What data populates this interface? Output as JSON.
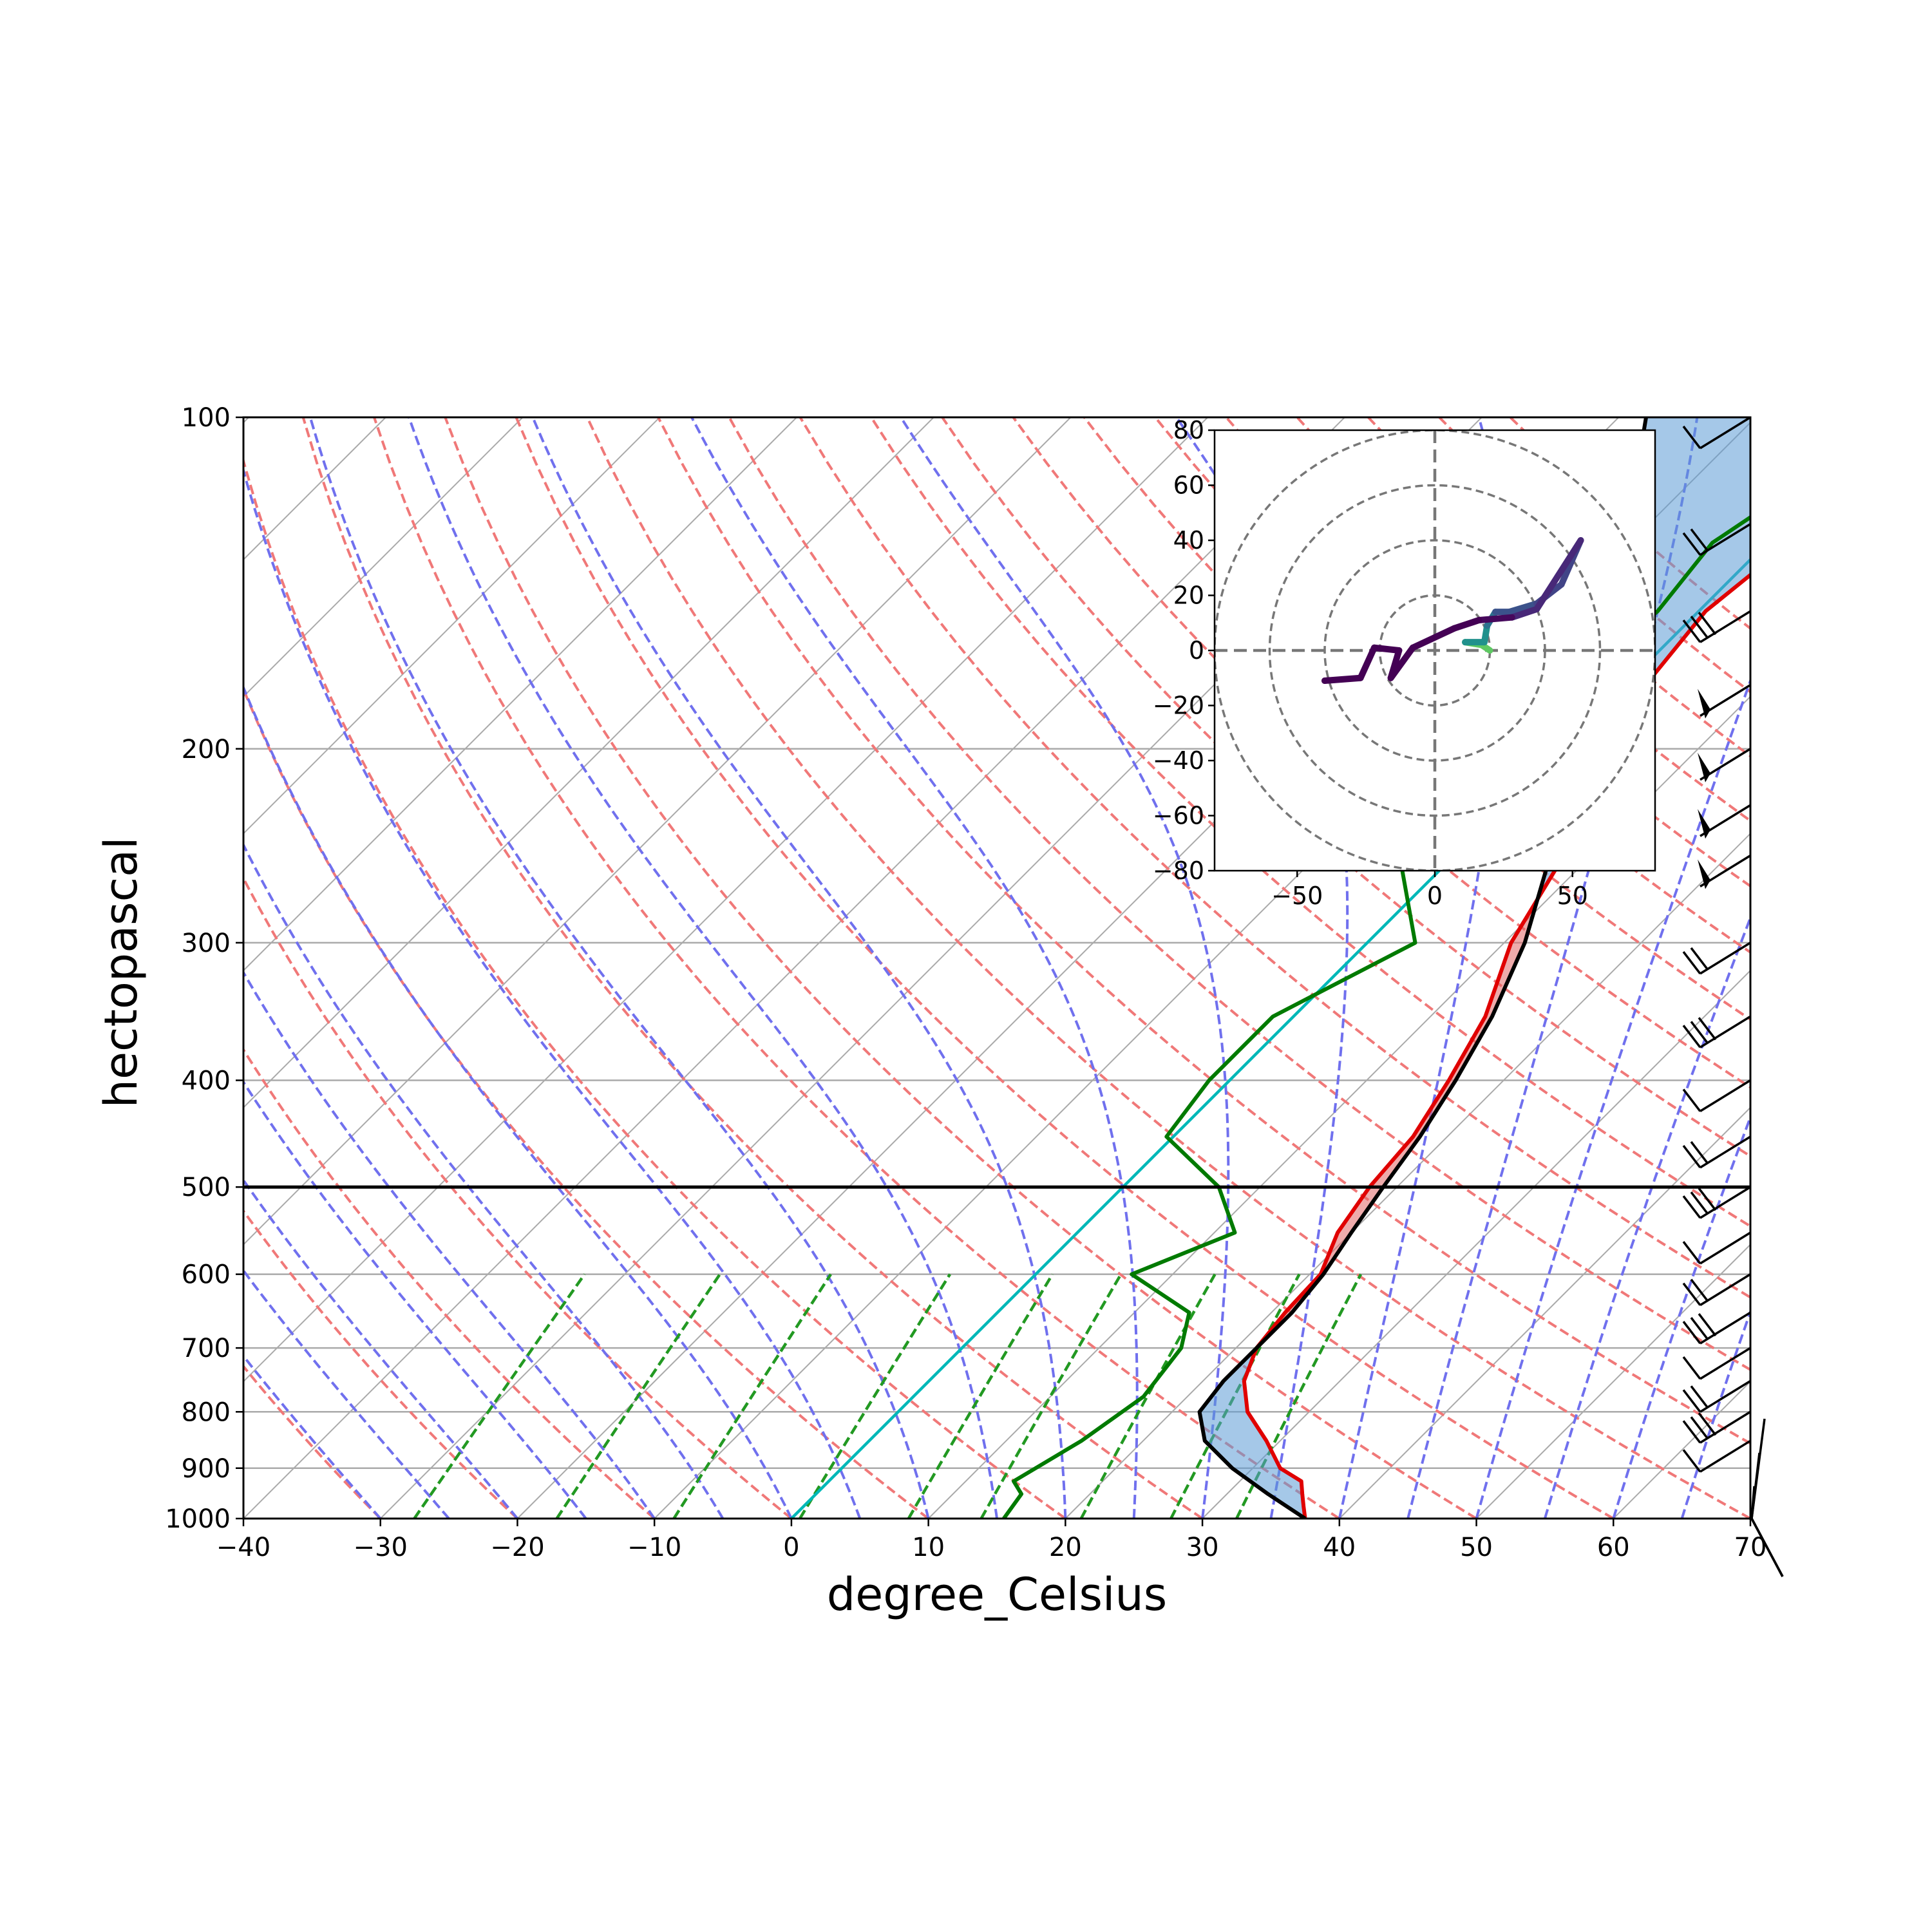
{
  "chart_data": [
    {
      "type": "line",
      "kind": "skew-T log-p diagram",
      "xlabel": "degree_Celsius",
      "ylabel": "hectopascal",
      "xlim": [
        -40,
        70
      ],
      "ylim": [
        1000,
        100
      ],
      "y_scale": "log",
      "x_ticks": [
        -40,
        -30,
        -20,
        -10,
        0,
        10,
        20,
        30,
        40,
        50,
        60,
        70
      ],
      "x_tick_labels": [
        "−40",
        "−30",
        "−20",
        "−10",
        "0",
        "10",
        "20",
        "30",
        "40",
        "50",
        "60",
        "70"
      ],
      "y_ticks": [
        100,
        200,
        300,
        400,
        500,
        600,
        700,
        800,
        900,
        1000
      ],
      "y_tick_labels": [
        "100",
        "200",
        "300",
        "400",
        "500",
        "600",
        "700",
        "800",
        "900",
        "1000"
      ],
      "grid": true,
      "colors": {
        "temperature": "#e00000",
        "dewpoint": "#007a00",
        "parcel": "#000000",
        "cape": "#e06666",
        "cin": "#5b9bd5",
        "dry_adiabats": "#f07878",
        "moist_adiabats": "#7070ee",
        "mixing_ratio": "#229922",
        "zero_isotherm": "#00b8b8",
        "highlight_isobar": "#000000",
        "grid": "#aaaaaa"
      },
      "highlight_isobar_hPa": 500,
      "highlighted_isotherm_C": 0,
      "series": [
        {
          "role": "temperature",
          "points": [
            {
              "p": 1000,
              "t": 37.5
            },
            {
              "p": 975,
              "t": 36.5
            },
            {
              "p": 950,
              "t": 35.5
            },
            {
              "p": 925,
              "t": 34.5
            },
            {
              "p": 900,
              "t": 32.0
            },
            {
              "p": 850,
              "t": 29.0
            },
            {
              "p": 800,
              "t": 25.5
            },
            {
              "p": 750,
              "t": 23.0
            },
            {
              "p": 700,
              "t": 21.5
            },
            {
              "p": 650,
              "t": 21.0
            },
            {
              "p": 600,
              "t": 20.8
            },
            {
              "p": 550,
              "t": 19.0
            },
            {
              "p": 500,
              "t": 18.0
            },
            {
              "p": 450,
              "t": 17.5
            },
            {
              "p": 400,
              "t": 16.0
            },
            {
              "p": 350,
              "t": 14.0
            },
            {
              "p": 300,
              "t": 10.5
            },
            {
              "p": 250,
              "t": 8.0
            },
            {
              "p": 200,
              "t": 3.5
            },
            {
              "p": 175,
              "t": 1.5
            },
            {
              "p": 150,
              "t": 0.5
            },
            {
              "p": 125,
              "t": 2.0
            },
            {
              "p": 100,
              "t": 3.5
            }
          ]
        },
        {
          "role": "dewpoint",
          "points": [
            {
              "p": 1000,
              "t": 15.5
            },
            {
              "p": 950,
              "t": 15.0
            },
            {
              "p": 925,
              "t": 13.5
            },
            {
              "p": 850,
              "t": 15.5
            },
            {
              "p": 775,
              "t": 16.8
            },
            {
              "p": 700,
              "t": 16.0
            },
            {
              "p": 650,
              "t": 14.0
            },
            {
              "p": 600,
              "t": 7.0
            },
            {
              "p": 550,
              "t": 11.5
            },
            {
              "p": 500,
              "t": 7.0
            },
            {
              "p": 450,
              "t": -0.5
            },
            {
              "p": 400,
              "t": -1.5
            },
            {
              "p": 350,
              "t": -1.5
            },
            {
              "p": 300,
              "t": 3.5
            },
            {
              "p": 250,
              "t": -4.0
            },
            {
              "p": 225,
              "t": -4.5
            },
            {
              "p": 200,
              "t": -1.0
            },
            {
              "p": 175,
              "t": -4.0
            },
            {
              "p": 150,
              "t": -3.0
            },
            {
              "p": 130,
              "t": -4.0
            },
            {
              "p": 100,
              "t": 0.5
            }
          ]
        },
        {
          "role": "parcel",
          "points": [
            {
              "p": 1000,
              "t": 37.5
            },
            {
              "p": 950,
              "t": 33.0
            },
            {
              "p": 900,
              "t": 28.5
            },
            {
              "p": 850,
              "t": 24.5
            },
            {
              "p": 800,
              "t": 22.0
            },
            {
              "p": 750,
              "t": 21.5
            },
            {
              "p": 700,
              "t": 21.5
            },
            {
              "p": 650,
              "t": 21.5
            },
            {
              "p": 600,
              "t": 21.0
            },
            {
              "p": 550,
              "t": 20.0
            },
            {
              "p": 500,
              "t": 19.0
            },
            {
              "p": 450,
              "t": 18.0
            },
            {
              "p": 400,
              "t": 16.5
            },
            {
              "p": 350,
              "t": 14.5
            },
            {
              "p": 300,
              "t": 11.5
            },
            {
              "p": 250,
              "t": 7.0
            },
            {
              "p": 200,
              "t": 1.5
            },
            {
              "p": 150,
              "t": -6.5
            },
            {
              "p": 125,
              "t": -11.5
            },
            {
              "p": 100,
              "t": -18.0
            }
          ]
        }
      ]
    },
    {
      "type": "line",
      "kind": "hodograph",
      "xlim": [
        -80,
        80
      ],
      "ylim": [
        -80,
        80
      ],
      "x_ticks": [
        -50,
        0,
        50
      ],
      "x_tick_labels": [
        "−50",
        "0",
        "50"
      ],
      "y_ticks": [
        80,
        60,
        40,
        20,
        0,
        -20,
        -40,
        -60,
        -80
      ],
      "y_tick_labels": [
        "80",
        "60",
        "40",
        "20",
        "0",
        "−20",
        "−40",
        "−60",
        "−80"
      ],
      "rings": [
        20,
        40,
        60,
        80
      ],
      "trace": [
        {
          "u": 20,
          "v": 0,
          "color": "#9ad94a"
        },
        {
          "u": 17,
          "v": 2,
          "color": "#5ec962"
        },
        {
          "u": 11,
          "v": 3,
          "color": "#5ec962"
        },
        {
          "u": 18,
          "v": 3,
          "color": "#21918c"
        },
        {
          "u": 19,
          "v": 9,
          "color": "#21918c"
        },
        {
          "u": 22,
          "v": 14,
          "color": "#2c728e"
        },
        {
          "u": 27,
          "v": 14,
          "color": "#3b528b"
        },
        {
          "u": 37,
          "v": 17,
          "color": "#3b528b"
        },
        {
          "u": 46,
          "v": 24,
          "color": "#414487"
        },
        {
          "u": 53,
          "v": 40,
          "color": "#414487"
        },
        {
          "u": 37,
          "v": 15,
          "color": "#482878"
        },
        {
          "u": 28,
          "v": 12,
          "color": "#482878"
        },
        {
          "u": 16,
          "v": 11,
          "color": "#46085c"
        },
        {
          "u": 7,
          "v": 8,
          "color": "#440154"
        },
        {
          "u": -8,
          "v": 1,
          "color": "#440154"
        },
        {
          "u": -16,
          "v": -10,
          "color": "#440154"
        },
        {
          "u": -13,
          "v": 0,
          "color": "#440154"
        },
        {
          "u": -22,
          "v": 1,
          "color": "#440154"
        },
        {
          "u": -27,
          "v": -10,
          "color": "#440154"
        },
        {
          "u": -40,
          "v": -11,
          "color": "#440154"
        },
        {
          "u": -40,
          "v": -11,
          "color": "#440154"
        }
      ]
    }
  ]
}
